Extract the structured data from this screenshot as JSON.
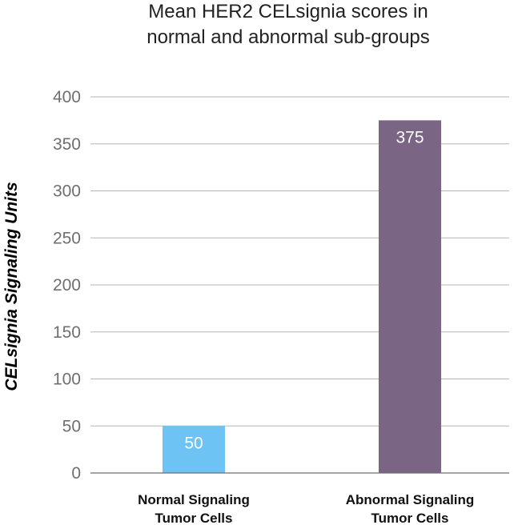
{
  "chart_data": {
    "type": "bar",
    "title_lines": [
      "Mean HER2 CELsignia scores in",
      "normal and abnormal sub-groups"
    ],
    "xlabel": "",
    "ylabel": "CELsignia Signaling Units",
    "ylim": [
      0,
      400
    ],
    "yticks": [
      "0",
      "50",
      "100",
      "150",
      "200",
      "250",
      "300",
      "350",
      "400"
    ],
    "grid": true,
    "categories": [
      [
        "Normal Signaling",
        "Tumor Cells"
      ],
      [
        "Abnormal Signaling",
        "Tumor Cells"
      ]
    ],
    "values": [
      50,
      375
    ],
    "data_labels": [
      "50",
      "375"
    ],
    "colors": [
      "#6ec3f5",
      "#7a6585"
    ]
  }
}
